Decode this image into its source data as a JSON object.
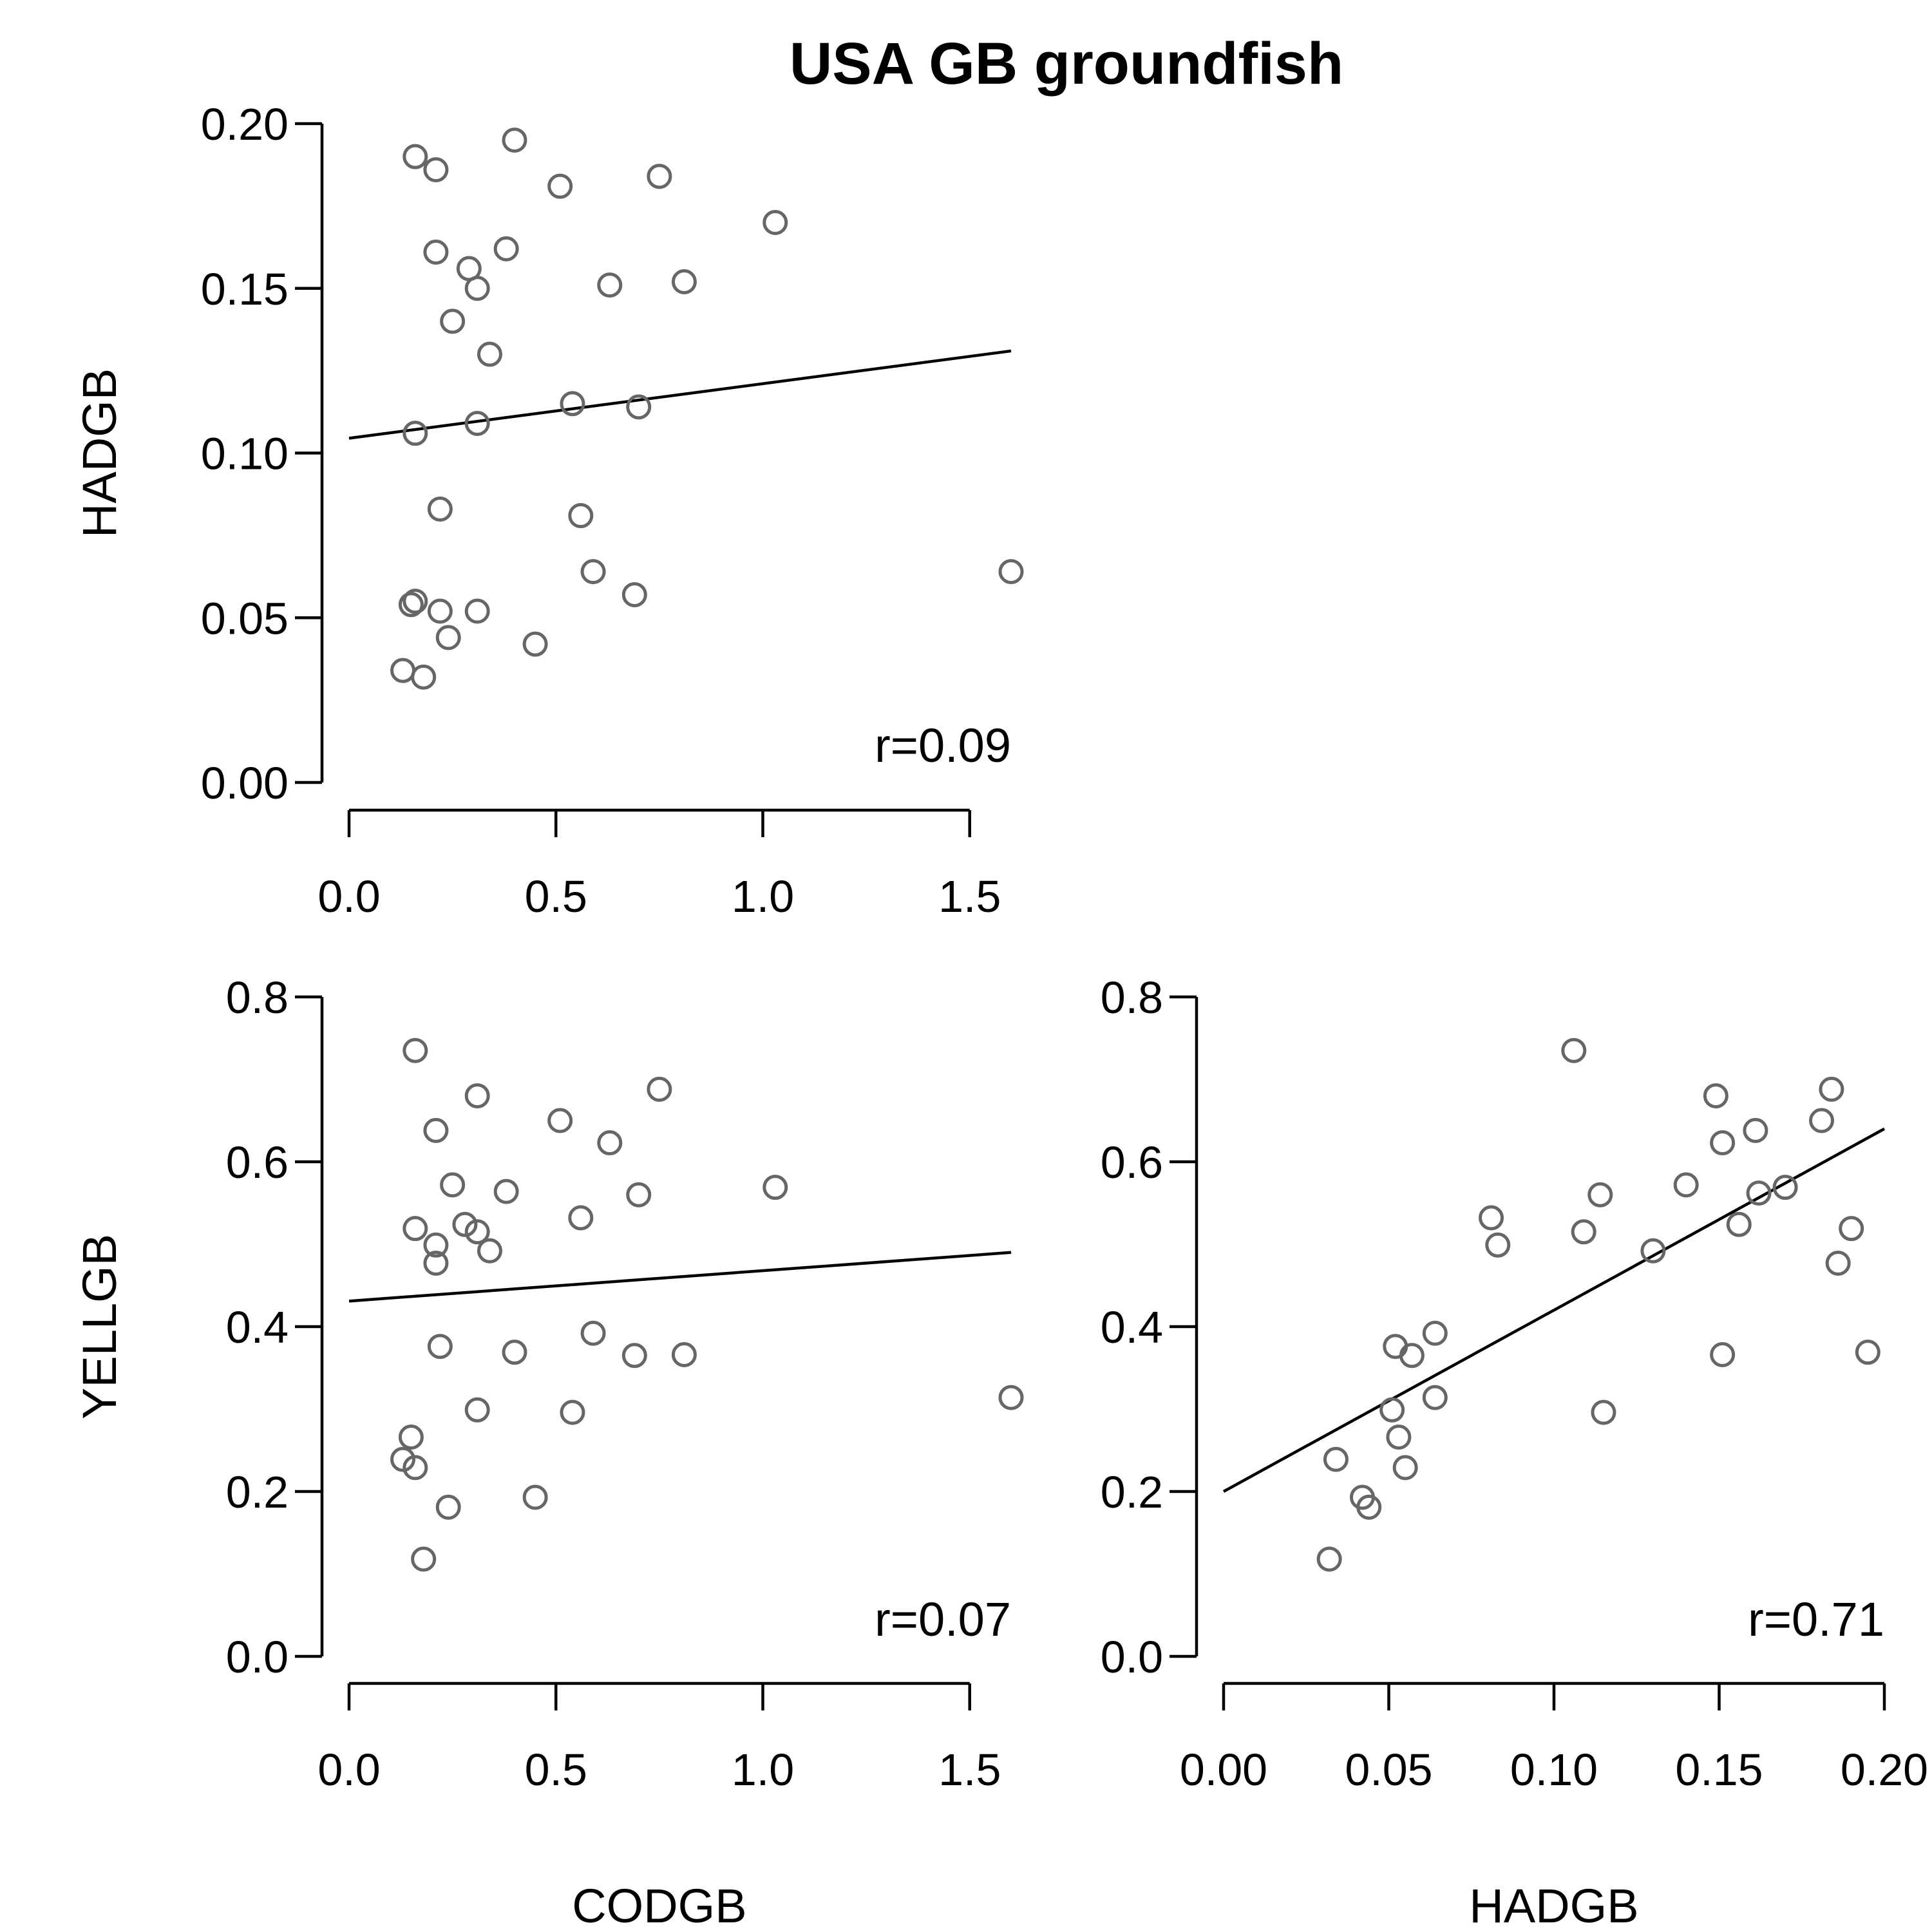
{
  "title": "USA GB groundfish",
  "colors": {
    "points": "#666666",
    "lines": "#000000",
    "background": "#ffffff"
  },
  "chart_data": [
    {
      "id": "had_vs_cod",
      "type": "scatter",
      "xlabel": "",
      "ylabel": "HADGB",
      "xlim": [
        0,
        1.6
      ],
      "ylim": [
        0,
        0.2
      ],
      "xticks": [
        "0.0",
        "0.5",
        "1.0",
        "1.5"
      ],
      "yticks": [
        "0.00",
        "0.05",
        "0.10",
        "0.15",
        "0.20"
      ],
      "annotation": "r=0.09",
      "fit": {
        "x": [
          0,
          1.6
        ],
        "y": [
          0.1045,
          0.131
        ]
      },
      "x": [
        0.16,
        0.21,
        0.4,
        0.51,
        0.75,
        1.03,
        0.21,
        0.29,
        0.38,
        0.31,
        0.63,
        0.81,
        0.25,
        0.34,
        0.54,
        0.7,
        0.16,
        0.31,
        0.22,
        0.56,
        0.59,
        0.69,
        1.6,
        0.16,
        0.15,
        0.22,
        0.31,
        0.24,
        0.45,
        0.13,
        0.18
      ],
      "y": [
        0.19,
        0.186,
        0.195,
        0.181,
        0.184,
        0.17,
        0.161,
        0.156,
        0.162,
        0.15,
        0.151,
        0.152,
        0.14,
        0.13,
        0.115,
        0.114,
        0.106,
        0.109,
        0.083,
        0.081,
        0.064,
        0.057,
        0.064,
        0.055,
        0.054,
        0.052,
        0.052,
        0.044,
        0.042,
        0.034,
        0.032
      ]
    },
    {
      "id": "yell_vs_cod",
      "type": "scatter",
      "xlabel": "CODGB",
      "ylabel": "YELLGB",
      "xlim": [
        0,
        1.6
      ],
      "ylim": [
        0,
        0.8
      ],
      "xticks": [
        "0.0",
        "0.5",
        "1.0",
        "1.5"
      ],
      "yticks": [
        "0.0",
        "0.2",
        "0.4",
        "0.6",
        "0.8"
      ],
      "annotation": "r=0.07",
      "fit": {
        "x": [
          0,
          1.6
        ],
        "y": [
          0.431,
          0.49
        ]
      },
      "x": [
        0.16,
        0.31,
        0.75,
        0.51,
        0.21,
        0.63,
        1.03,
        0.25,
        0.38,
        0.7,
        0.56,
        0.16,
        0.28,
        0.31,
        0.21,
        0.34,
        0.21,
        0.59,
        0.22,
        0.4,
        0.69,
        0.81,
        1.6,
        0.31,
        0.54,
        0.15,
        0.13,
        0.16,
        0.24,
        0.45,
        0.18
      ],
      "y": [
        0.735,
        0.68,
        0.688,
        0.65,
        0.638,
        0.623,
        0.569,
        0.572,
        0.564,
        0.56,
        0.532,
        0.519,
        0.524,
        0.515,
        0.477,
        0.492,
        0.499,
        0.392,
        0.376,
        0.369,
        0.365,
        0.366,
        0.314,
        0.299,
        0.296,
        0.266,
        0.239,
        0.229,
        0.181,
        0.193,
        0.118
      ]
    },
    {
      "id": "yell_vs_had",
      "type": "scatter",
      "xlabel": "HADGB",
      "ylabel": "",
      "xlim": [
        0,
        0.2
      ],
      "ylim": [
        0,
        0.8
      ],
      "xticks": [
        "0.00",
        "0.05",
        "0.10",
        "0.15",
        "0.20"
      ],
      "yticks": [
        "0.0",
        "0.2",
        "0.4",
        "0.6",
        "0.8"
      ],
      "annotation": "r=0.71",
      "fit": {
        "x": [
          0,
          0.2
        ],
        "y": [
          0.2,
          0.64
        ]
      },
      "x": [
        0.106,
        0.149,
        0.184,
        0.181,
        0.161,
        0.151,
        0.17,
        0.162,
        0.14,
        0.156,
        0.19,
        0.186,
        0.195,
        0.151,
        0.115,
        0.13,
        0.114,
        0.109,
        0.081,
        0.083,
        0.064,
        0.064,
        0.052,
        0.057,
        0.051,
        0.053,
        0.055,
        0.034,
        0.042,
        0.044,
        0.032
      ],
      "y": [
        0.735,
        0.68,
        0.688,
        0.65,
        0.638,
        0.623,
        0.569,
        0.562,
        0.572,
        0.524,
        0.519,
        0.477,
        0.369,
        0.366,
        0.296,
        0.492,
        0.56,
        0.515,
        0.532,
        0.499,
        0.392,
        0.314,
        0.376,
        0.365,
        0.299,
        0.266,
        0.229,
        0.239,
        0.193,
        0.181,
        0.118
      ]
    }
  ]
}
